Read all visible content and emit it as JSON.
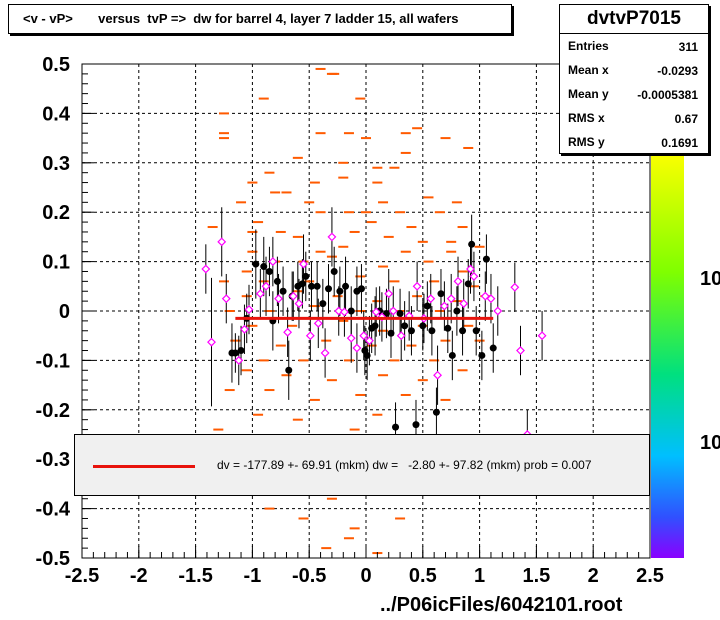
{
  "title": "<v - vP>       versus  tvP =>  dw for barrel 4, layer 7 ladder 15, all wafers",
  "stats": {
    "name": "dvtvP7015",
    "rows": [
      {
        "label": "Entries",
        "value": "311"
      },
      {
        "label": "Mean x",
        "value": "-0.0293"
      },
      {
        "label": "Mean y",
        "value": "-0.0005381"
      },
      {
        "label": "RMS x",
        "value": "0.67"
      },
      {
        "label": "RMS y",
        "value": "0.1691"
      }
    ]
  },
  "legend": {
    "text": "dv = -177.89 +- 69.91 (mkm) dw =   -2.80 +- 97.82 (mkm) prob = 0.007",
    "color": "#e8130c"
  },
  "footer": "../P06icFiles/6042101.root",
  "palette": {
    "labels": [
      "10",
      "10"
    ]
  },
  "chart_data": {
    "type": "scatter",
    "xlim": [
      -2.5,
      2.5
    ],
    "ylim": [
      -0.5,
      0.5
    ],
    "grid": true,
    "x_ticks": [
      "-2.5",
      "-2",
      "-1.5",
      "-1",
      "-0.5",
      "0",
      "0.5",
      "1",
      "1.5",
      "2",
      "2.5"
    ],
    "y_ticks": [
      "0.5",
      "0.4",
      "0.3",
      "0.2",
      "0.1",
      "0",
      "-0.1",
      "-0.2",
      "-0.3",
      "-0.4",
      "-0.5"
    ],
    "fit_line": {
      "x": [
        -1.15,
        1.12
      ],
      "y": [
        -0.015,
        -0.015
      ],
      "color": "#e8130c"
    },
    "histogram_bins": {
      "color": "#ff5a00",
      "points": [
        [
          -0.4,
          0.49
        ],
        [
          -0.3,
          0.48
        ],
        [
          -0.28,
          0.48
        ],
        [
          -0.9,
          0.43
        ],
        [
          -0.05,
          0.43
        ],
        [
          -1.25,
          0.4
        ],
        [
          -1.25,
          0.36
        ],
        [
          -1.25,
          0.35
        ],
        [
          -0.4,
          0.36
        ],
        [
          -0.15,
          0.36
        ],
        [
          0.0,
          0.35
        ],
        [
          0.35,
          0.36
        ],
        [
          0.45,
          0.37
        ],
        [
          0.7,
          0.35
        ],
        [
          0.35,
          0.32
        ],
        [
          0.9,
          0.33
        ],
        [
          -0.6,
          0.31
        ],
        [
          -0.2,
          0.3
        ],
        [
          0.25,
          0.29
        ],
        [
          -0.2,
          0.27
        ],
        [
          0.1,
          0.26
        ],
        [
          -0.45,
          0.26
        ],
        [
          0.1,
          0.29
        ],
        [
          -0.85,
          0.28
        ],
        [
          -1.0,
          0.26
        ],
        [
          -0.8,
          0.24
        ],
        [
          -0.7,
          0.24
        ],
        [
          -1.1,
          0.22
        ],
        [
          -0.5,
          0.22
        ],
        [
          -0.4,
          0.2
        ],
        [
          -0.15,
          0.2
        ],
        [
          0.0,
          0.2
        ],
        [
          0.15,
          0.22
        ],
        [
          0.3,
          0.2
        ],
        [
          0.55,
          0.23
        ],
        [
          0.8,
          0.22
        ],
        [
          0.65,
          0.2
        ],
        [
          0.4,
          0.17
        ],
        [
          -0.95,
          0.18
        ],
        [
          -1.35,
          0.17
        ],
        [
          -1.0,
          0.16
        ],
        [
          -0.75,
          0.16
        ],
        [
          -0.1,
          0.16
        ],
        [
          0.05,
          0.18
        ],
        [
          0.85,
          0.17
        ],
        [
          -0.6,
          0.15
        ],
        [
          0.2,
          0.15
        ],
        [
          0.5,
          0.14
        ],
        [
          0.75,
          0.12
        ],
        [
          -1.0,
          0.12
        ],
        [
          -0.4,
          0.12
        ],
        [
          -0.2,
          0.13
        ],
        [
          0.35,
          0.12
        ],
        [
          0.75,
          0.14
        ],
        [
          1.0,
          0.13
        ],
        [
          -0.8,
          0.1
        ],
        [
          -0.55,
          0.1
        ],
        [
          -0.3,
          0.11
        ],
        [
          0.15,
          0.09
        ],
        [
          0.55,
          0.1
        ],
        [
          0.85,
          0.08
        ],
        [
          -1.05,
          0.08
        ],
        [
          -1.25,
          0.06
        ],
        [
          -0.9,
          0.06
        ],
        [
          -0.5,
          0.06
        ],
        [
          -0.05,
          0.07
        ],
        [
          0.25,
          0.06
        ],
        [
          0.6,
          0.06
        ],
        [
          0.95,
          0.05
        ],
        [
          -1.05,
          0.03
        ],
        [
          -0.6,
          0.04
        ],
        [
          -0.25,
          0.03
        ],
        [
          0.1,
          0.02
        ],
        [
          0.45,
          0.03
        ],
        [
          0.8,
          0.02
        ],
        [
          1.05,
          0.03
        ],
        [
          -1.2,
          0.0
        ],
        [
          -0.85,
          -0.0
        ],
        [
          -0.45,
          0.01
        ],
        [
          -0.05,
          0.0
        ],
        [
          0.3,
          -0.0
        ],
        [
          0.65,
          0.0
        ],
        [
          -1.0,
          -0.03
        ],
        [
          -0.65,
          -0.03
        ],
        [
          -0.2,
          -0.02
        ],
        [
          0.15,
          -0.04
        ],
        [
          0.5,
          -0.03
        ],
        [
          0.9,
          -0.03
        ],
        [
          -1.15,
          -0.06
        ],
        [
          -0.75,
          -0.07
        ],
        [
          -0.35,
          -0.06
        ],
        [
          0.05,
          -0.07
        ],
        [
          0.4,
          -0.07
        ],
        [
          0.7,
          -0.06
        ],
        [
          1.0,
          -0.06
        ],
        [
          -0.9,
          -0.1
        ],
        [
          -0.55,
          -0.1
        ],
        [
          -0.15,
          -0.1
        ],
        [
          0.25,
          -0.1
        ],
        [
          0.6,
          -0.1
        ],
        [
          -1.05,
          -0.12
        ],
        [
          -0.7,
          -0.13
        ],
        [
          -0.3,
          -0.14
        ],
        [
          0.15,
          -0.13
        ],
        [
          0.5,
          -0.14
        ],
        [
          0.85,
          -0.12
        ],
        [
          -1.2,
          -0.16
        ],
        [
          -0.85,
          -0.16
        ],
        [
          -0.45,
          -0.18
        ],
        [
          -0.05,
          -0.17
        ],
        [
          0.35,
          -0.17
        ],
        [
          0.7,
          -0.18
        ],
        [
          -0.95,
          -0.21
        ],
        [
          -0.6,
          -0.22
        ],
        [
          0.1,
          -0.21
        ],
        [
          -1.3,
          -0.24
        ],
        [
          -0.1,
          -0.24
        ],
        [
          -0.85,
          -0.4
        ],
        [
          -0.3,
          -0.38
        ],
        [
          -0.1,
          -0.44
        ],
        [
          -0.15,
          -0.46
        ],
        [
          -0.35,
          -0.48
        ],
        [
          -0.55,
          -0.42
        ],
        [
          0.3,
          -0.42
        ],
        [
          0.1,
          -0.49
        ]
      ]
    },
    "series_black": {
      "color": "#000000",
      "points": [
        [
          -1.18,
          -0.085,
          0.06
        ],
        [
          -1.15,
          -0.085,
          0.04
        ],
        [
          -1.1,
          -0.08,
          0.05
        ],
        [
          -1.05,
          -0.015,
          0.05
        ],
        [
          -0.97,
          0.095,
          0.07
        ],
        [
          -0.9,
          0.09,
          0.06
        ],
        [
          -0.85,
          0.08,
          0.05
        ],
        [
          -0.82,
          -0.02,
          0.06
        ],
        [
          -0.78,
          0.06,
          0.05
        ],
        [
          -0.73,
          0.04,
          0.05
        ],
        [
          -0.68,
          -0.12,
          0.06
        ],
        [
          -0.65,
          0.03,
          0.05
        ],
        [
          -0.6,
          0.05,
          0.05
        ],
        [
          -0.56,
          0.055,
          0.05
        ],
        [
          -0.53,
          0.07,
          0.05
        ],
        [
          -0.48,
          0.05,
          0.05
        ],
        [
          -0.43,
          0.05,
          0.05
        ],
        [
          -0.38,
          0.015,
          0.05
        ],
        [
          -0.33,
          0.045,
          0.05
        ],
        [
          -0.28,
          0.08,
          0.05
        ],
        [
          -0.23,
          0.04,
          0.05
        ],
        [
          -0.18,
          0.05,
          0.06
        ],
        [
          -0.13,
          0.0,
          0.05
        ],
        [
          -0.08,
          0.04,
          0.05
        ],
        [
          -0.04,
          0.045,
          0.05
        ],
        [
          -0.01,
          -0.08,
          0.05
        ],
        [
          0.01,
          -0.09,
          0.05
        ],
        [
          0.05,
          -0.035,
          0.05
        ],
        [
          0.08,
          -0.03,
          0.06
        ],
        [
          0.12,
          0.0,
          0.05
        ],
        [
          0.18,
          -0.005,
          0.05
        ],
        [
          0.22,
          -0.045,
          0.05
        ],
        [
          0.26,
          -0.235,
          0.05
        ],
        [
          0.3,
          -0.005,
          0.05
        ],
        [
          0.34,
          -0.03,
          0.05
        ],
        [
          0.4,
          -0.04,
          0.05
        ],
        [
          0.44,
          -0.23,
          0.05
        ],
        [
          0.5,
          -0.03,
          0.05
        ],
        [
          0.54,
          0.01,
          0.05
        ],
        [
          0.58,
          -0.04,
          0.05
        ],
        [
          0.62,
          -0.205,
          0.05
        ],
        [
          0.66,
          0.035,
          0.05
        ],
        [
          0.72,
          -0.035,
          0.05
        ],
        [
          0.76,
          -0.09,
          0.05
        ],
        [
          0.8,
          0.0,
          0.05
        ],
        [
          0.85,
          -0.04,
          0.05
        ],
        [
          0.9,
          0.055,
          0.05
        ],
        [
          0.93,
          0.135,
          0.06
        ],
        [
          0.97,
          -0.04,
          0.05
        ],
        [
          1.02,
          -0.09,
          0.05
        ],
        [
          1.06,
          0.105,
          0.05
        ],
        [
          1.12,
          -0.075,
          0.05
        ]
      ]
    },
    "series_magenta": {
      "color": "#ff00ff",
      "points": [
        [
          -1.41,
          0.085,
          0.05
        ],
        [
          -1.36,
          -0.063,
          0.13
        ],
        [
          -1.27,
          0.14,
          0.07
        ],
        [
          -1.23,
          0.025,
          0.05
        ],
        [
          -1.12,
          -0.1,
          0.05
        ],
        [
          -1.07,
          -0.037,
          0.05
        ],
        [
          -1.03,
          0.003,
          0.05
        ],
        [
          -0.93,
          0.035,
          0.05
        ],
        [
          -0.88,
          0.05,
          0.06
        ],
        [
          -0.82,
          0.1,
          0.05
        ],
        [
          -0.77,
          0.025,
          0.05
        ],
        [
          -0.69,
          -0.043,
          0.05
        ],
        [
          -0.64,
          0.03,
          0.05
        ],
        [
          -0.59,
          0.015,
          0.05
        ],
        [
          -0.55,
          0.095,
          0.06
        ],
        [
          -0.49,
          -0.05,
          0.05
        ],
        [
          -0.42,
          -0.025,
          0.05
        ],
        [
          -0.36,
          -0.085,
          0.05
        ],
        [
          -0.3,
          0.15,
          0.06
        ],
        [
          -0.24,
          0.0,
          0.05
        ],
        [
          -0.19,
          -0.002,
          0.05
        ],
        [
          -0.13,
          -0.055,
          0.05
        ],
        [
          -0.08,
          -0.075,
          0.05
        ],
        [
          -0.02,
          -0.05,
          0.05
        ],
        [
          0.03,
          -0.06,
          0.05
        ],
        [
          0.09,
          -0.002,
          0.05
        ],
        [
          0.14,
          -0.012,
          0.05
        ],
        [
          0.2,
          0.035,
          0.05
        ],
        [
          0.24,
          0.0,
          0.05
        ],
        [
          0.31,
          -0.05,
          0.05
        ],
        [
          0.38,
          -0.01,
          0.05
        ],
        [
          0.45,
          0.05,
          0.05
        ],
        [
          0.51,
          -0.015,
          0.05
        ],
        [
          0.57,
          0.025,
          0.05
        ],
        [
          0.63,
          -0.13,
          0.06
        ],
        [
          0.69,
          0.01,
          0.05
        ],
        [
          0.75,
          0.025,
          0.05
        ],
        [
          0.81,
          0.06,
          0.05
        ],
        [
          0.86,
          0.015,
          0.05
        ],
        [
          0.92,
          0.085,
          0.05
        ],
        [
          0.95,
          0.07,
          0.05
        ],
        [
          1.05,
          0.03,
          0.05
        ],
        [
          1.1,
          0.025,
          0.05
        ],
        [
          1.16,
          0.0,
          0.05
        ],
        [
          1.31,
          0.048,
          0.05
        ],
        [
          1.36,
          -0.08,
          0.05
        ],
        [
          1.42,
          -0.25,
          0.05
        ],
        [
          1.55,
          -0.05,
          0.05
        ]
      ]
    }
  }
}
